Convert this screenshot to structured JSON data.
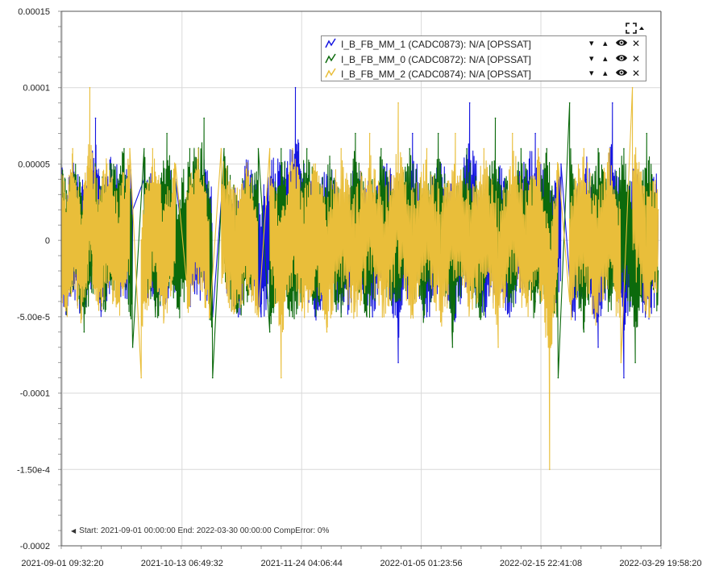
{
  "chart_data": {
    "type": "line",
    "y_ticks": [
      "0.00015",
      "0.0001",
      "0.00005",
      "0",
      "-5.00e-5",
      "-0.0001",
      "-1.50e-4",
      "-0.0002"
    ],
    "y_tick_values": [
      0.00015,
      0.0001,
      5e-05,
      0,
      -5e-05,
      -0.0001,
      -0.00015,
      -0.0002
    ],
    "ylim": [
      -0.0002,
      0.00015
    ],
    "x_ticks": [
      "2021-09-01 09:32:20",
      "2021-10-13 06:49:32",
      "2021-11-24 04:06:44",
      "2022-01-05 01:23:56",
      "2022-02-15 22:41:08",
      "2022-03-29 19:58:20"
    ],
    "xlim": [
      "2021-09-01 00:00:00",
      "2022-03-30 00:00:00"
    ],
    "grid": true,
    "legend_position": "top-right",
    "series": [
      {
        "name": "I_B_FB_MM_1 (CADC0873): N/A [OPSSAT]",
        "color": "#1515e0",
        "values": [
          [
            "2021-09-01",
            3e-05
          ],
          [
            "2021-09-03",
            -4e-05
          ],
          [
            "2021-09-05",
            4e-05
          ],
          [
            "2021-09-08",
            -3e-05
          ],
          [
            "2021-09-11",
            4e-05
          ],
          [
            "2021-09-13",
            8e-05
          ],
          [
            "2021-09-15",
            -3e-05
          ],
          [
            "2021-09-18",
            4e-05
          ],
          [
            "2021-09-22",
            3e-05
          ],
          [
            "2021-09-26",
            2e-05
          ],
          [
            "2021-09-30",
            4e-05
          ],
          [
            "2021-10-05",
            -3e-05
          ],
          [
            "2021-10-11",
            4e-05
          ],
          [
            "2021-10-16",
            -4e-05
          ],
          [
            "2021-10-21",
            4e-05
          ],
          [
            "2021-10-24",
            -5e-05
          ],
          [
            "2021-10-28",
            5e-05
          ],
          [
            "2021-11-02",
            -5e-05
          ],
          [
            "2021-11-05",
            4e-05
          ],
          [
            "2021-11-10",
            -5e-05
          ],
          [
            "2021-11-14",
            4e-05
          ],
          [
            "2021-11-18",
            3e-05
          ],
          [
            "2021-11-22",
            0.0001
          ],
          [
            "2021-11-25",
            5e-05
          ],
          [
            "2021-11-29",
            -5e-05
          ],
          [
            "2021-12-04",
            4e-05
          ],
          [
            "2021-12-09",
            -4e-05
          ],
          [
            "2021-12-14",
            4e-05
          ],
          [
            "2021-12-19",
            -5e-05
          ],
          [
            "2021-12-24",
            5e-05
          ],
          [
            "2021-12-28",
            -8e-05
          ],
          [
            "2022-01-02",
            7e-05
          ],
          [
            "2022-01-07",
            -5e-05
          ],
          [
            "2022-01-12",
            5e-05
          ],
          [
            "2022-01-17",
            -4e-05
          ],
          [
            "2022-01-22",
            9e-05
          ],
          [
            "2022-01-27",
            -4e-05
          ],
          [
            "2022-02-01",
            4e-05
          ],
          [
            "2022-02-05",
            -5e-05
          ],
          [
            "2022-02-10",
            4e-05
          ],
          [
            "2022-02-14",
            7e-05
          ],
          [
            "2022-02-19",
            -4e-05
          ],
          [
            "2022-02-23",
            5e-05
          ],
          [
            "2022-02-27",
            -5e-05
          ],
          [
            "2022-03-04",
            4e-05
          ],
          [
            "2022-03-08",
            -7e-05
          ],
          [
            "2022-03-13",
            9e-05
          ],
          [
            "2022-03-17",
            -9e-05
          ],
          [
            "2022-03-21",
            4e-05
          ],
          [
            "2022-03-25",
            -4e-05
          ],
          [
            "2022-03-29",
            2e-05
          ]
        ]
      },
      {
        "name": "I_B_FB_MM_0 (CADC0872): N/A [OPSSAT]",
        "color": "#0c6a0c",
        "values": [
          [
            "2021-09-01",
            4e-05
          ],
          [
            "2021-09-03",
            -3e-05
          ],
          [
            "2021-09-06",
            4e-05
          ],
          [
            "2021-09-09",
            -6e-05
          ],
          [
            "2021-09-12",
            4e-05
          ],
          [
            "2021-09-16",
            -2e-05
          ],
          [
            "2021-09-19",
            4e-05
          ],
          [
            "2021-09-23",
            6e-05
          ],
          [
            "2021-09-26",
            -7e-05
          ],
          [
            "2021-09-30",
            6e-05
          ],
          [
            "2021-10-04",
            -5e-05
          ],
          [
            "2021-10-08",
            7e-05
          ],
          [
            "2021-10-12",
            -4e-05
          ],
          [
            "2021-10-16",
            6e-05
          ],
          [
            "2021-10-21",
            8e-05
          ],
          [
            "2021-10-24",
            -9e-05
          ],
          [
            "2021-10-28",
            6e-05
          ],
          [
            "2021-11-01",
            -4e-05
          ],
          [
            "2021-11-05",
            0.0
          ],
          [
            "2021-11-09",
            6e-05
          ],
          [
            "2021-11-13",
            -6e-05
          ],
          [
            "2021-11-17",
            6e-05
          ],
          [
            "2021-11-21",
            -5e-05
          ],
          [
            "2021-11-26",
            6e-05
          ],
          [
            "2021-11-30",
            -4e-05
          ],
          [
            "2021-12-04",
            5e-05
          ],
          [
            "2021-12-08",
            -5e-05
          ],
          [
            "2021-12-13",
            7e-05
          ],
          [
            "2021-12-17",
            -5e-05
          ],
          [
            "2021-12-22",
            6e-05
          ],
          [
            "2021-12-27",
            -4e-05
          ],
          [
            "2022-01-01",
            6e-05
          ],
          [
            "2022-01-06",
            -4e-05
          ],
          [
            "2022-01-11",
            7e-05
          ],
          [
            "2022-01-16",
            -7e-05
          ],
          [
            "2022-01-21",
            6e-05
          ],
          [
            "2022-01-26",
            -5e-05
          ],
          [
            "2022-01-31",
            8e-05
          ],
          [
            "2022-02-05",
            -4e-05
          ],
          [
            "2022-02-09",
            6e-05
          ],
          [
            "2022-02-14",
            -4e-05
          ],
          [
            "2022-02-18",
            6e-05
          ],
          [
            "2022-02-22",
            -9e-05
          ],
          [
            "2022-02-26",
            9e-05
          ],
          [
            "2022-03-03",
            -6e-05
          ],
          [
            "2022-03-08",
            6e-05
          ],
          [
            "2022-03-12",
            -4e-05
          ],
          [
            "2022-03-17",
            6e-05
          ],
          [
            "2022-03-21",
            -8e-05
          ],
          [
            "2022-03-25",
            7e-05
          ],
          [
            "2022-03-29",
            -2e-05
          ]
        ]
      },
      {
        "name": "I_B_FB_MM_2 (CADC0874): N/A [OPSSAT]",
        "color": "#e9be3a",
        "values": [
          [
            "2021-09-01",
            2e-05
          ],
          [
            "2021-09-03",
            -4e-05
          ],
          [
            "2021-09-05",
            6e-05
          ],
          [
            "2021-09-08",
            -5e-05
          ],
          [
            "2021-09-11",
            0.0001
          ],
          [
            "2021-09-14",
            -3e-05
          ],
          [
            "2021-09-17",
            5e-05
          ],
          [
            "2021-09-21",
            -4e-05
          ],
          [
            "2021-09-25",
            6e-05
          ],
          [
            "2021-09-29",
            -9e-05
          ],
          [
            "2021-10-03",
            6e-05
          ],
          [
            "2021-10-07",
            -5e-05
          ],
          [
            "2021-10-11",
            5e-05
          ],
          [
            "2021-10-15",
            -3e-05
          ],
          [
            "2021-10-19",
            6e-05
          ],
          [
            "2021-10-23",
            -5e-05
          ],
          [
            "2021-10-27",
            6e-05
          ],
          [
            "2021-11-01",
            -4e-05
          ],
          [
            "2021-11-05",
            4e-05
          ],
          [
            "2021-11-09",
            -5e-05
          ],
          [
            "2021-11-13",
            6e-05
          ],
          [
            "2021-11-17",
            -9e-05
          ],
          [
            "2021-11-21",
            6e-05
          ],
          [
            "2021-11-25",
            -4e-05
          ],
          [
            "2021-11-29",
            5e-05
          ],
          [
            "2021-12-03",
            -6e-05
          ],
          [
            "2021-12-08",
            6e-05
          ],
          [
            "2021-12-13",
            -4e-05
          ],
          [
            "2021-12-18",
            7e-05
          ],
          [
            "2021-12-23",
            -5e-05
          ],
          [
            "2021-12-28",
            9e-05
          ],
          [
            "2022-01-02",
            -4e-05
          ],
          [
            "2022-01-07",
            6e-05
          ],
          [
            "2022-01-12",
            -5e-05
          ],
          [
            "2022-01-17",
            7e-05
          ],
          [
            "2022-01-22",
            -4e-05
          ],
          [
            "2022-01-27",
            6e-05
          ],
          [
            "2022-02-01",
            -7e-05
          ],
          [
            "2022-02-06",
            7e-05
          ],
          [
            "2022-02-11",
            -4e-05
          ],
          [
            "2022-02-15",
            6e-05
          ],
          [
            "2022-02-19",
            -0.00015
          ],
          [
            "2022-02-22",
            5e-05
          ],
          [
            "2022-02-26",
            -4e-05
          ],
          [
            "2022-03-03",
            6e-05
          ],
          [
            "2022-03-07",
            -5e-05
          ],
          [
            "2022-03-12",
            6e-05
          ],
          [
            "2022-03-16",
            -8e-05
          ],
          [
            "2022-03-20",
            0.0001
          ],
          [
            "2022-03-25",
            -4e-05
          ],
          [
            "2022-03-29",
            2e-05
          ]
        ]
      }
    ]
  },
  "legend": {
    "items": [
      {
        "label": "I_B_FB_MM_1 (CADC0873): N/A [OPSSAT]",
        "color": "#1515e0",
        "icon": "line-series-icon"
      },
      {
        "label": "I_B_FB_MM_0 (CADC0872): N/A [OPSSAT]",
        "color": "#0c6a0c",
        "icon": "line-series-icon"
      },
      {
        "label": "I_B_FB_MM_2 (CADC0874): N/A [OPSSAT]",
        "color": "#e9be3a",
        "icon": "line-series-icon"
      }
    ],
    "controls": {
      "move_down": "▾",
      "move_up": "▴",
      "toggle_visibility": "eye-icon",
      "remove": "✕"
    }
  },
  "toolbar": {
    "fullscreen_icon": "expand-icon",
    "collapse_caret": "▴"
  },
  "footer": {
    "caret": "◀",
    "text": "Start: 2021-09-01 00:00:00 End: 2022-03-30 00:00:00 CompError: 0%"
  }
}
